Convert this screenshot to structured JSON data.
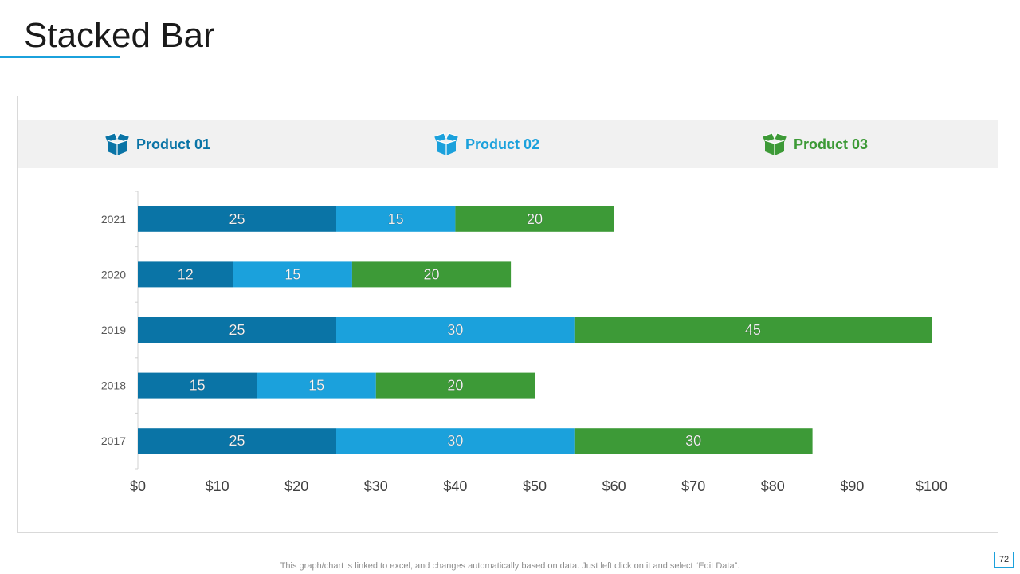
{
  "slide": {
    "title": "Stacked Bar",
    "footer_note": "This graph/chart is linked to excel,  and changes automatically based on data. Just left click on it and select “Edit Data”.",
    "page_number": "72"
  },
  "legend": [
    {
      "label": "Product 01",
      "color": "#0a74a6",
      "icon": "open-box-icon"
    },
    {
      "label": "Product 02",
      "color": "#1ba1dc",
      "icon": "open-box-icon"
    },
    {
      "label": "Product 03",
      "color": "#3d9a37",
      "icon": "open-box-icon"
    }
  ],
  "chart_data": {
    "type": "bar",
    "orientation": "horizontal",
    "stacked": true,
    "title": "Stacked Bar",
    "categories": [
      "2021",
      "2020",
      "2019",
      "2018",
      "2017"
    ],
    "series": [
      {
        "name": "Product 01",
        "color": "#0a74a6",
        "values": [
          25,
          12,
          25,
          15,
          25
        ]
      },
      {
        "name": "Product 02",
        "color": "#1ba1dc",
        "values": [
          15,
          15,
          30,
          15,
          30
        ]
      },
      {
        "name": "Product 03",
        "color": "#3d9a37",
        "values": [
          20,
          20,
          45,
          20,
          30
        ]
      }
    ],
    "xlim": [
      0,
      100
    ],
    "x_ticks": [
      "$0",
      "$10",
      "$20",
      "$30",
      "$40",
      "$50",
      "$60",
      "$70",
      "$80",
      "$90",
      "$100"
    ],
    "data_labels": true,
    "legend_position": "top",
    "grid": false
  }
}
